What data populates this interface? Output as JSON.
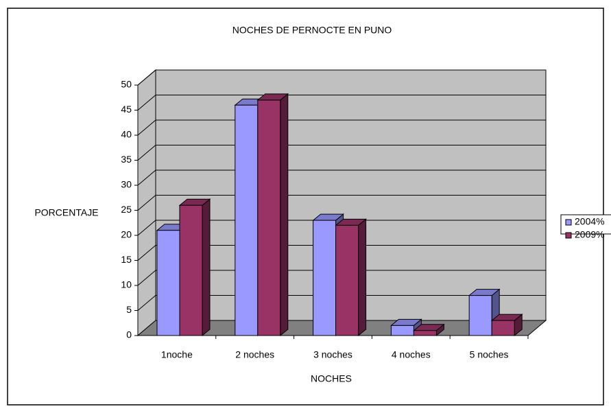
{
  "chart_data": {
    "type": "bar3d",
    "title": "NOCHES DE PERNOCTE EN PUNO",
    "x_label": "NOCHES",
    "y_label": "PORCENTAJE",
    "categories": [
      "1noche",
      "2 noches",
      "3 noches",
      "4 noches",
      "5 noches"
    ],
    "series": [
      {
        "name": "2004%",
        "color": "#9999ff",
        "values": [
          21,
          46,
          23,
          2,
          8
        ]
      },
      {
        "name": "2009%",
        "color": "#993366",
        "values": [
          26,
          47,
          22,
          1,
          3
        ]
      }
    ],
    "ylim": [
      0,
      50
    ],
    "yticks": [
      0,
      5,
      10,
      15,
      20,
      25,
      30,
      35,
      40,
      45,
      50
    ],
    "grid": true,
    "legend": "right"
  }
}
